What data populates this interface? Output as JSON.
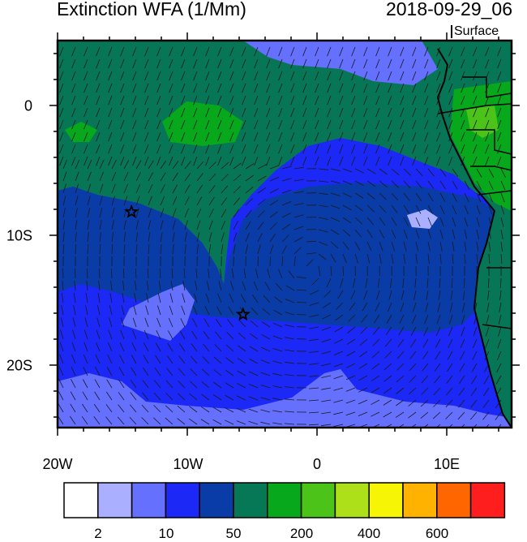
{
  "title": "Extinction WFA (1/Mm)",
  "datetime": "2018-09-29_06",
  "level": "Surface",
  "lon_labels": [
    "20W",
    "10W",
    "0",
    "10E"
  ],
  "lat_labels": [
    "0",
    "10S",
    "20S"
  ],
  "colorbar": {
    "labels": [
      "2",
      "10",
      "50",
      "200",
      "400",
      "600"
    ],
    "colors": [
      "#ffffff",
      "#aab0ff",
      "#6670ff",
      "#1c28f5",
      "#0a3ca8",
      "#067856",
      "#07a81c",
      "#4cc318",
      "#aee01a",
      "#f5f505",
      "#ffb200",
      "#ff6600",
      "#ff1e1e"
    ]
  },
  "field_colors": {
    "ocean_high": "#077656",
    "ocean_mid": "#0a3ca8",
    "ocean_low": "#1c28f5",
    "ocean_clean": "#6670ff",
    "very_clean": "#aab0ff",
    "green": "#07a81c",
    "lightgreen": "#4cc318",
    "yellowgreen": "#aee01a"
  },
  "markers": [
    {
      "name": "star-marker-1",
      "lon": -14.3,
      "lat": -8.2
    },
    {
      "name": "star-marker-2",
      "lon": -5.7,
      "lat": -16.1
    }
  ]
}
